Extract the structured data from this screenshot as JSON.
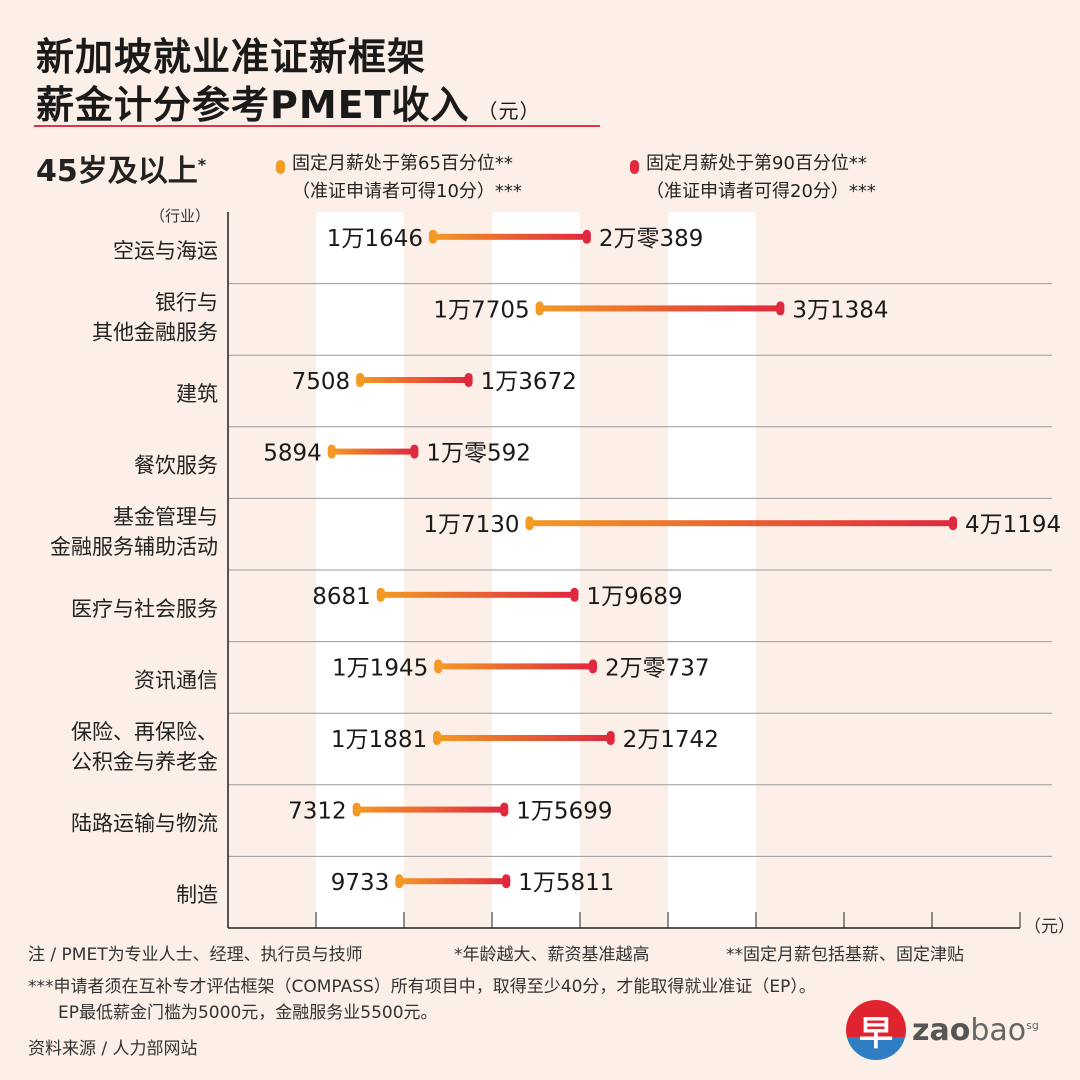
{
  "title_line1": "新加坡就业准证新框架",
  "title_line2": "薪金计分参考PMET收入",
  "title_unit": "（元）",
  "age_group": "45岁及以上",
  "age_mark": "*",
  "legend": [
    {
      "line1": "固定月薪处于第65百分位**",
      "line2": "（准证申请者可得10分）***",
      "color": "#f39a24"
    },
    {
      "line1": "固定月薪处于第90百分位**",
      "line2": "（准证申请者可得20分）***",
      "color": "#e0283f"
    }
  ],
  "industry_label": "（行业）",
  "axis_unit": "（元）",
  "chart_data": {
    "type": "dumbbell",
    "xlim": [
      0,
      45000
    ],
    "x_tick_step": 5000,
    "x_tick_labels_shown": false,
    "grid": "alternating vertical bands",
    "categories": [
      {
        "line1": "空运与海运",
        "line2": ""
      },
      {
        "line1": "银行与",
        "line2": "其他金融服务"
      },
      {
        "line1": "建筑",
        "line2": ""
      },
      {
        "line1": "餐饮服务",
        "line2": ""
      },
      {
        "line1": "基金管理与",
        "line2": "金融服务辅助活动"
      },
      {
        "line1": "医疗与社会服务",
        "line2": ""
      },
      {
        "line1": "资讯通信",
        "line2": ""
      },
      {
        "line1": "保险、再保险、",
        "line2": "公积金与养老金"
      },
      {
        "line1": "陆路运输与物流",
        "line2": ""
      },
      {
        "line1": "制造",
        "line2": ""
      }
    ],
    "series": [
      {
        "name": "固定月薪处于第65百分位",
        "values": [
          11646,
          17705,
          7508,
          5894,
          17130,
          8681,
          11945,
          11881,
          7312,
          9733
        ],
        "labels": [
          "1万1646",
          "1万7705",
          "7508",
          "5894",
          "1万7130",
          "8681",
          "1万1945",
          "1万1881",
          "7312",
          "9733"
        ]
      },
      {
        "name": "固定月薪处于第90百分位",
        "values": [
          20389,
          31384,
          13672,
          10592,
          41194,
          19689,
          20737,
          21742,
          15699,
          15811
        ],
        "labels": [
          "2万零389",
          "3万1384",
          "1万3672",
          "1万零592",
          "4万1194",
          "1万9689",
          "2万零737",
          "2万1742",
          "1万5699",
          "1万5811"
        ]
      }
    ]
  },
  "notes": {
    "n1": "注 / PMET为专业人士、经理、执行员与技师",
    "n2": "*年龄越大、薪资基准越高",
    "n3": "**固定月薪包括基薪、固定津贴",
    "n4": "***申请者须在互补专才评估框架（COMPASS）所有项目中，取得至少40分，才能取得就业准证（EP）。",
    "n5": "EP最低薪金门槛为5000元，金融服务业5500元。",
    "source": "资料来源 / 人力部网站"
  },
  "logo": {
    "mark": "早",
    "text_bold": "zao",
    "text_light": "bao",
    "suffix": "sg"
  }
}
